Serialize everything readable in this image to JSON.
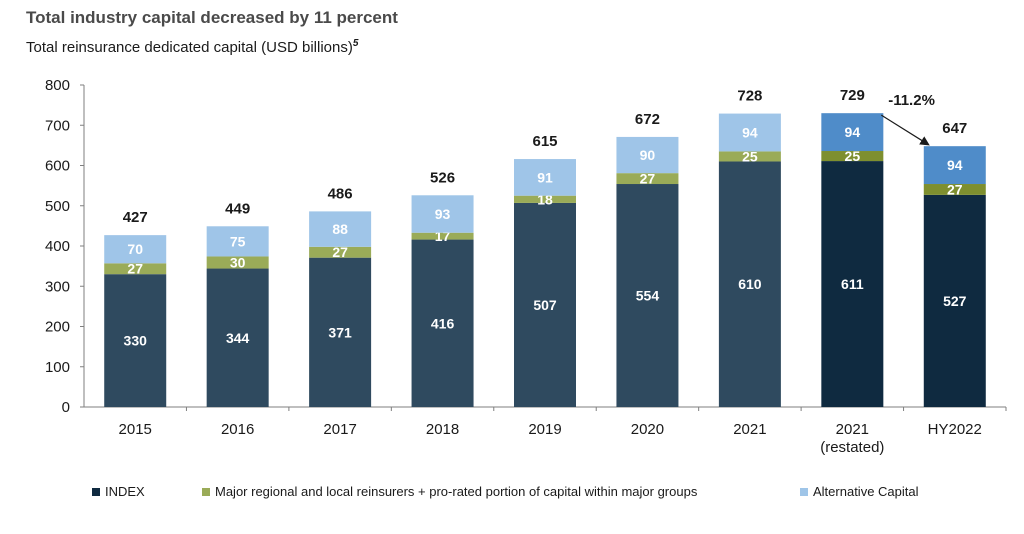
{
  "header": {
    "title": "Total industry capital decreased by 11 percent",
    "subtitle": "Total reinsurance dedicated capital (USD billions)",
    "subtitle_footnote": "5"
  },
  "colors": {
    "index": "#2f4a5f",
    "index_highlight": "#0f2a40",
    "regional": "#9aab58",
    "regional_highlight": "#7e8f2f",
    "alternative": "#9fc5e8",
    "alternative_highlight": "#4f8cc9",
    "axis": "#7f7f7f"
  },
  "chart_data": {
    "type": "bar",
    "stacked": true,
    "categories": [
      "2015",
      "2016",
      "2017",
      "2018",
      "2019",
      "2020",
      "2021",
      "2021\n(restated)",
      "HY2022"
    ],
    "series": [
      {
        "name": "INDEX",
        "values": [
          330,
          344,
          371,
          416,
          507,
          554,
          610,
          611,
          527
        ]
      },
      {
        "name": "Major regional and local reinsurers + pro-rated portion of capital within major groups",
        "values": [
          27,
          30,
          27,
          17,
          18,
          27,
          25,
          25,
          27
        ]
      },
      {
        "name": "Alternative Capital",
        "values": [
          70,
          75,
          88,
          93,
          91,
          90,
          94,
          94,
          94
        ]
      }
    ],
    "totals": [
      427,
      449,
      486,
      526,
      615,
      672,
      728,
      729,
      647
    ],
    "highlighted_categories": [
      7,
      8
    ],
    "yticks": [
      0,
      100,
      200,
      300,
      400,
      500,
      600,
      700,
      800
    ],
    "ylim": [
      0,
      800
    ],
    "grid": false,
    "legend_position": "bottom",
    "annotation": {
      "text": "-11.2%",
      "from_category": 7,
      "to_category": 8
    }
  }
}
